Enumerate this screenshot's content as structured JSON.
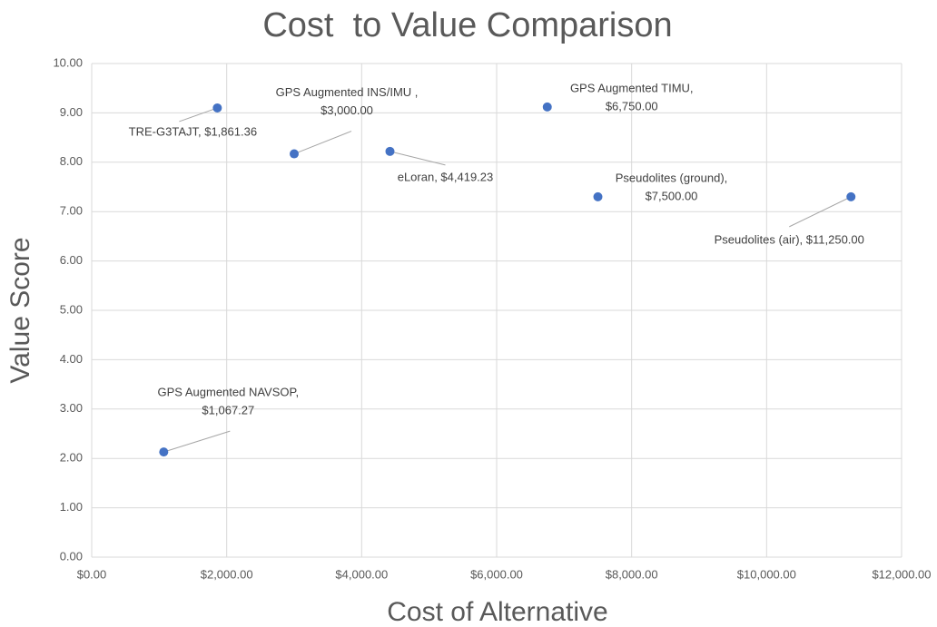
{
  "chart_data": {
    "type": "scatter",
    "title": "Cost  to Value Comparison",
    "x_label": "Cost of Alternative",
    "y_label": "Value Score",
    "color": "#4472c4",
    "grid": true,
    "x": [
      1861.36,
      3000,
      4419.23,
      6750,
      7500,
      11250,
      1067.27
    ],
    "values": [
      9.1,
      8.17,
      8.22,
      9.12,
      7.3,
      7.3,
      2.13
    ],
    "value_labels": [
      [
        "TRE-G3TAJT, $1,861.36"
      ],
      [
        "GPS Augmented INS/IMU ,",
        "$3,000.00"
      ],
      [
        "eLoran, $4,419.23"
      ],
      [
        "GPS Augmented TIMU,",
        "$6,750.00"
      ],
      [
        "Pseudolites (ground),",
        "$7,500.00"
      ],
      [
        "Pseudolites (air), $11,250.00"
      ],
      [
        "GPS Augmented NAVSOP,",
        "$1,067.27"
      ]
    ],
    "xlim": [
      0,
      12000
    ],
    "xticks": [
      {
        "value": 0,
        "label": "$0.00"
      },
      {
        "value": 2000,
        "label": "$2,000.00"
      },
      {
        "value": 4000,
        "label": "$4,000.00"
      },
      {
        "value": 6000,
        "label": "$6,000.00"
      },
      {
        "value": 8000,
        "label": "$8,000.00"
      },
      {
        "value": 10000,
        "label": "$10,000.00"
      },
      {
        "value": 12000,
        "label": "$12,000.00"
      }
    ],
    "ylim": [
      0,
      10
    ],
    "yticks": [
      {
        "value": 0,
        "label": "0.00"
      },
      {
        "value": 1,
        "label": "1.00"
      },
      {
        "value": 2,
        "label": "2.00"
      },
      {
        "value": 3,
        "label": "3.00"
      },
      {
        "value": 4,
        "label": "4.00"
      },
      {
        "value": 5,
        "label": "5.00"
      },
      {
        "value": 6,
        "label": "6.00"
      },
      {
        "value": 7,
        "label": "7.00"
      },
      {
        "value": 8,
        "label": "8.00"
      },
      {
        "value": 9,
        "label": "9.00"
      },
      {
        "value": 10,
        "label": "10.00"
      }
    ]
  }
}
